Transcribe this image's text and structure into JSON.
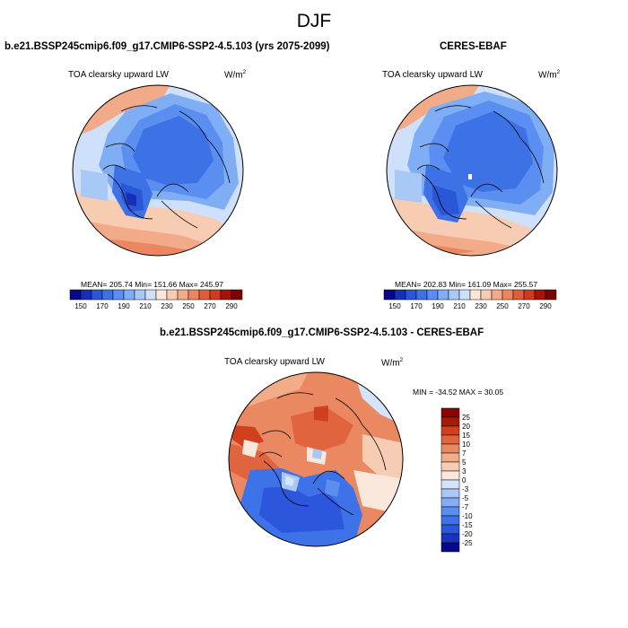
{
  "title": "DJF",
  "panels": {
    "model": {
      "title": "b.e21.BSSP245cmip6.f09_g17.CMIP6-SSP2-4.5.103 (yrs 2075-2099)",
      "variable": "TOA clearsky upward LW",
      "unit_base": "W/m",
      "unit_exp": "2",
      "stats": "MEAN= 205.74  Min= 151.66  Max= 245.97"
    },
    "obs": {
      "title": "CERES-EBAF",
      "variable": "TOA clearsky upward LW",
      "unit_base": "W/m",
      "unit_exp": "2",
      "stats": "MEAN= 202.83  Min= 161.09  Max= 255.57"
    },
    "diff": {
      "title": "b.e21.BSSP245cmip6.f09_g17.CMIP6-SSP2-4.5.103 - CERES-EBAF",
      "variable": "TOA clearsky upward LW",
      "unit_base": "W/m",
      "unit_exp": "2",
      "stats": "MIN = -34.52 MAX =  30.05"
    }
  },
  "colorbars": {
    "absolute": {
      "colors": [
        "#08088a",
        "#1530b8",
        "#2a56d8",
        "#3c72e6",
        "#5a8ef0",
        "#80aef4",
        "#a8c8f6",
        "#cfe0fa",
        "#fbe6da",
        "#f8ccb2",
        "#f2ab88",
        "#ea8660",
        "#df5f3a",
        "#cf3b1e",
        "#a81208",
        "#7a0404"
      ],
      "labels": [
        "150",
        "170",
        "190",
        "210",
        "230",
        "250",
        "270",
        "290"
      ]
    },
    "difference": {
      "colors": [
        "#08088a",
        "#1a34c0",
        "#2c56dc",
        "#3e72e8",
        "#5c8ef0",
        "#84aef4",
        "#aac8f6",
        "#d4e4fa",
        "#fbe8dc",
        "#f8ccb2",
        "#f2ac88",
        "#ea8862",
        "#e0643e",
        "#d0401e",
        "#a81a08",
        "#8a0606"
      ],
      "labels": [
        "25",
        "20",
        "15",
        "10",
        "7",
        "5",
        "3",
        "0",
        "-3",
        "-5",
        "-7",
        "-10",
        "-15",
        "-20",
        "-25"
      ]
    }
  }
}
